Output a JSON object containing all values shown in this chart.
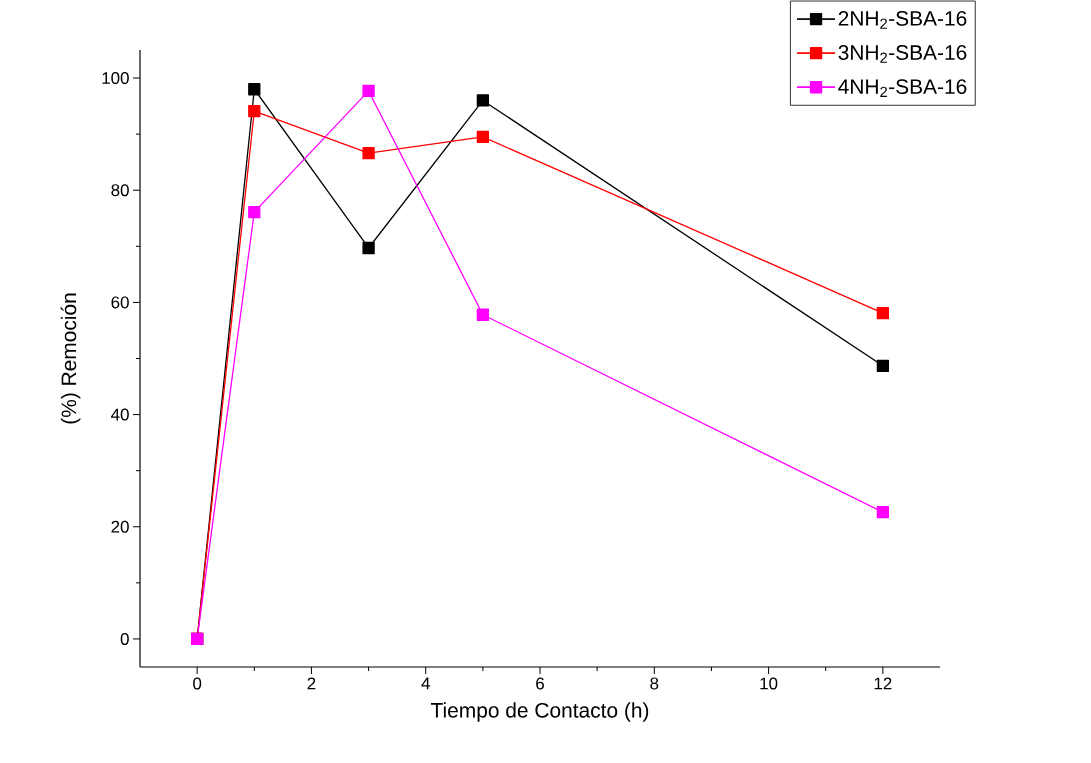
{
  "chart_data": {
    "type": "line",
    "xlabel": "Tiempo de Contacto (h)",
    "ylabel": "(%) Remoción",
    "x": [
      0,
      1,
      3,
      5,
      12
    ],
    "series": [
      {
        "name": "2NH$_{2}$-SBA-16",
        "color": "#000000",
        "values": [
          0,
          98,
          69.7,
          96,
          48.7
        ]
      },
      {
        "name": "3NH$_{2}$-SBA-16",
        "color": "#ff0000",
        "values": [
          0,
          94.1,
          86.6,
          89.5,
          58.1
        ]
      },
      {
        "name": "4NH$_{2}$-SBA-16",
        "color": "#ff00ff",
        "values": [
          0,
          76.1,
          97.7,
          57.8,
          22.6
        ]
      }
    ],
    "xlim": [
      -1,
      13
    ],
    "ylim": [
      -5,
      105
    ],
    "xticks": [
      0,
      2,
      4,
      6,
      8,
      10,
      12
    ],
    "yticks": [
      0,
      20,
      40,
      60,
      80,
      100
    ],
    "grid": false,
    "legend": "top right",
    "marker": "square",
    "line_style": "solid"
  }
}
